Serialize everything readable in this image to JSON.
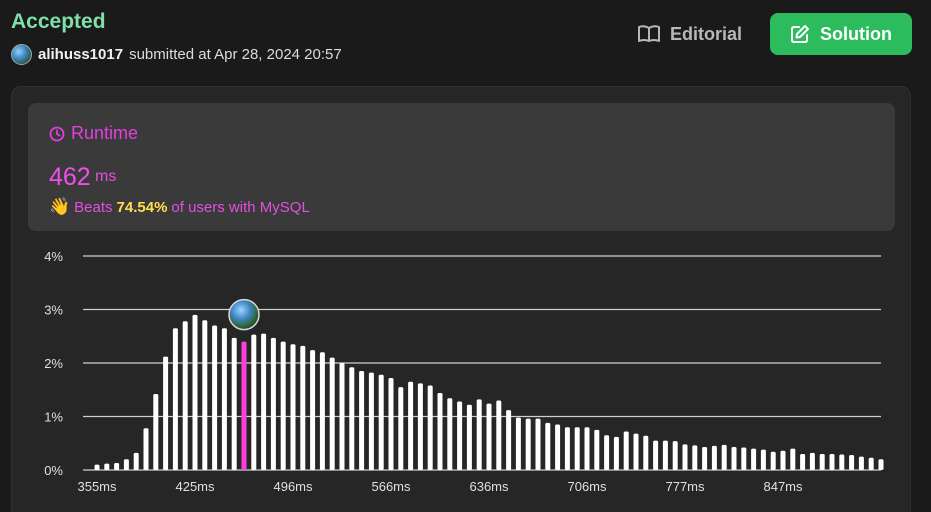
{
  "header": {
    "status": "Accepted",
    "username": "alihuss1017",
    "submitted_text": "submitted at Apr 28, 2024 20:57"
  },
  "buttons": {
    "editorial_label": "Editorial",
    "solution_label": "Solution"
  },
  "runtime": {
    "label": "Runtime",
    "value": "462",
    "unit": "ms",
    "beats_prefix": "Beats",
    "beats_percent": "74.54%",
    "beats_suffix": "of users with MySQL"
  },
  "icons": {
    "editorial": "book-icon",
    "solution": "edit-icon",
    "runtime": "clock-icon",
    "beats": "wave-hand-icon"
  },
  "colors": {
    "accepted": "#7ee0a8",
    "accent": "#e44fe2",
    "solution_button": "#2cbb5d",
    "beats_percent": "#ffe04a",
    "bar": "#ffffff",
    "highlight_bar": "#ff3fdc"
  },
  "chart_data": {
    "type": "bar",
    "y_tick_labels": [
      "0%",
      "1%",
      "2%",
      "3%",
      "4%"
    ],
    "y_ticks": [
      0,
      1,
      2,
      3,
      4
    ],
    "ylim": [
      0,
      4
    ],
    "x_tick_labels": [
      "355ms",
      "425ms",
      "496ms",
      "566ms",
      "636ms",
      "706ms",
      "777ms",
      "847ms"
    ],
    "x_tick_bar_index": [
      0,
      10,
      20,
      30,
      40,
      50,
      60,
      70
    ],
    "highlight_index": 15,
    "grid": true,
    "values": [
      0.1,
      0.12,
      0.13,
      0.2,
      0.32,
      0.78,
      1.42,
      2.12,
      2.65,
      2.78,
      2.9,
      2.8,
      2.7,
      2.65,
      2.47,
      2.4,
      2.53,
      2.55,
      2.47,
      2.4,
      2.35,
      2.32,
      2.24,
      2.2,
      2.1,
      2.0,
      1.92,
      1.85,
      1.82,
      1.78,
      1.72,
      1.55,
      1.65,
      1.62,
      1.58,
      1.44,
      1.34,
      1.28,
      1.22,
      1.32,
      1.24,
      1.3,
      1.12,
      0.98,
      0.96,
      0.96,
      0.88,
      0.85,
      0.8,
      0.8,
      0.8,
      0.75,
      0.65,
      0.62,
      0.72,
      0.68,
      0.64,
      0.55,
      0.55,
      0.54,
      0.48,
      0.46,
      0.43,
      0.45,
      0.47,
      0.43,
      0.42,
      0.4,
      0.38,
      0.34,
      0.36,
      0.4,
      0.3,
      0.32,
      0.3,
      0.3,
      0.29,
      0.28,
      0.25,
      0.23,
      0.2
    ]
  }
}
